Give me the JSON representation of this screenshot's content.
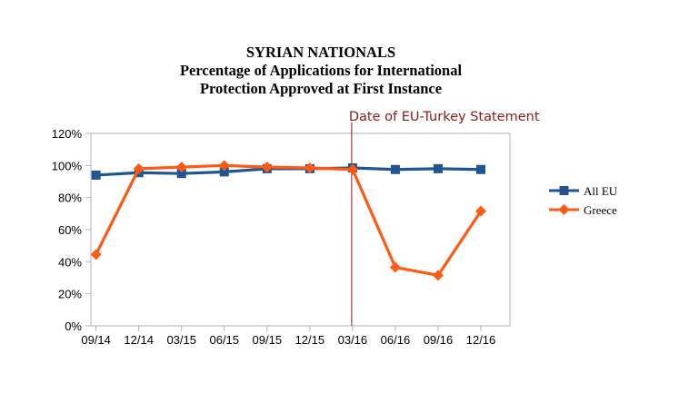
{
  "chart_data": {
    "type": "line",
    "title": [
      "SYRIAN NATIONALS",
      "Percentage of Applications for International",
      "Protection Approved at First Instance"
    ],
    "categories": [
      "09/14",
      "12/14",
      "03/15",
      "06/15",
      "09/15",
      "12/15",
      "03/16",
      "06/16",
      "09/16",
      "12/16"
    ],
    "ylim": [
      0,
      120
    ],
    "yticks": [
      0,
      20,
      40,
      60,
      80,
      100,
      120
    ],
    "ytick_labels": [
      "0%",
      "20%",
      "40%",
      "60%",
      "80%",
      "100%",
      "120%"
    ],
    "series": [
      {
        "name": "All EU",
        "values": [
          94,
          95.5,
          95,
          96,
          98,
          98,
          98.5,
          97.5,
          98,
          97.5
        ],
        "color": "#1f5591",
        "marker": "square"
      },
      {
        "name": "Greece",
        "values": [
          44.5,
          98,
          99,
          100,
          99,
          98.5,
          97.5,
          36.5,
          31.5,
          71.5
        ],
        "color": "#ff5a14",
        "marker": "diamond"
      }
    ],
    "annotation": {
      "label": "Date of EU-Turkey Statement",
      "category": "03/16",
      "color": "#8b1a1a"
    },
    "grid": false,
    "legend_position": "right"
  }
}
